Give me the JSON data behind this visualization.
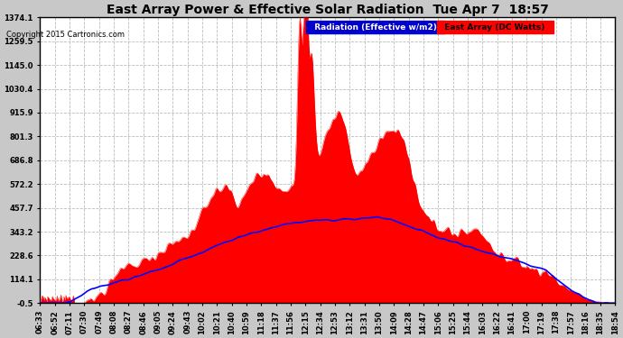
{
  "title": "East Array Power & Effective Solar Radiation  Tue Apr 7  18:57",
  "copyright": "Copyright 2015 Cartronics.com",
  "legend_radiation": "Radiation (Effective w/m2)",
  "legend_east": "East Array (DC Watts)",
  "y_ticks": [
    -0.5,
    114.1,
    228.6,
    343.2,
    457.7,
    572.2,
    686.8,
    801.3,
    915.9,
    1030.4,
    1145.0,
    1259.5,
    1374.1
  ],
  "ylim": [
    -0.5,
    1374.1
  ],
  "bg_color": "#c8c8c8",
  "plot_bg": "#ffffff",
  "red_color": "#ff0000",
  "blue_color": "#0000ff",
  "grid_color": "#aaaaaa",
  "x_labels": [
    "06:33",
    "06:52",
    "07:11",
    "07:30",
    "07:49",
    "08:08",
    "08:27",
    "08:46",
    "09:05",
    "09:24",
    "09:43",
    "10:02",
    "10:21",
    "10:40",
    "10:59",
    "11:18",
    "11:37",
    "11:56",
    "12:15",
    "12:34",
    "12:53",
    "13:12",
    "13:31",
    "13:50",
    "14:09",
    "14:28",
    "14:47",
    "15:06",
    "15:25",
    "15:44",
    "16:03",
    "16:22",
    "16:41",
    "17:00",
    "17:19",
    "17:38",
    "17:57",
    "18:16",
    "18:35",
    "18:54"
  ],
  "n_points": 600
}
